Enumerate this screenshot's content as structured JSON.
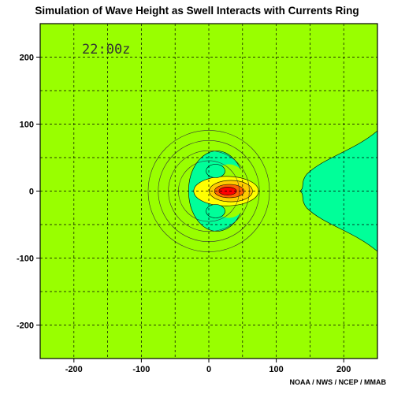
{
  "chart_data": {
    "type": "heatmap",
    "title": "Simulation of Wave Height as Swell Interacts with Currents Ring",
    "time_label": "22:00z",
    "credit": "NOAA / NWS / NCEP / MMAB",
    "xlim": [
      -250,
      250
    ],
    "ylim": [
      -250,
      250
    ],
    "x_ticks": [
      -200,
      -100,
      0,
      100,
      200
    ],
    "y_ticks": [
      -200,
      -100,
      0,
      100,
      200
    ],
    "grid": true,
    "grid_spacing": 50,
    "colors": {
      "background": "#99ff00",
      "shadow_band": "#00ff99",
      "inner_band": "#ffff00",
      "mid_band": "#ffcc00",
      "high_band": "#ff6600",
      "peak": "#ff0000"
    },
    "current_ring": {
      "center": [
        0,
        0
      ],
      "radii": [
        90,
        75,
        60,
        45
      ]
    },
    "features": {
      "focus_peak": {
        "x": 28,
        "y": 0
      },
      "shadow_lobes": [
        {
          "x": 10,
          "y": 30
        },
        {
          "x": 10,
          "y": -30
        }
      ],
      "wake_start_x": 135
    }
  }
}
